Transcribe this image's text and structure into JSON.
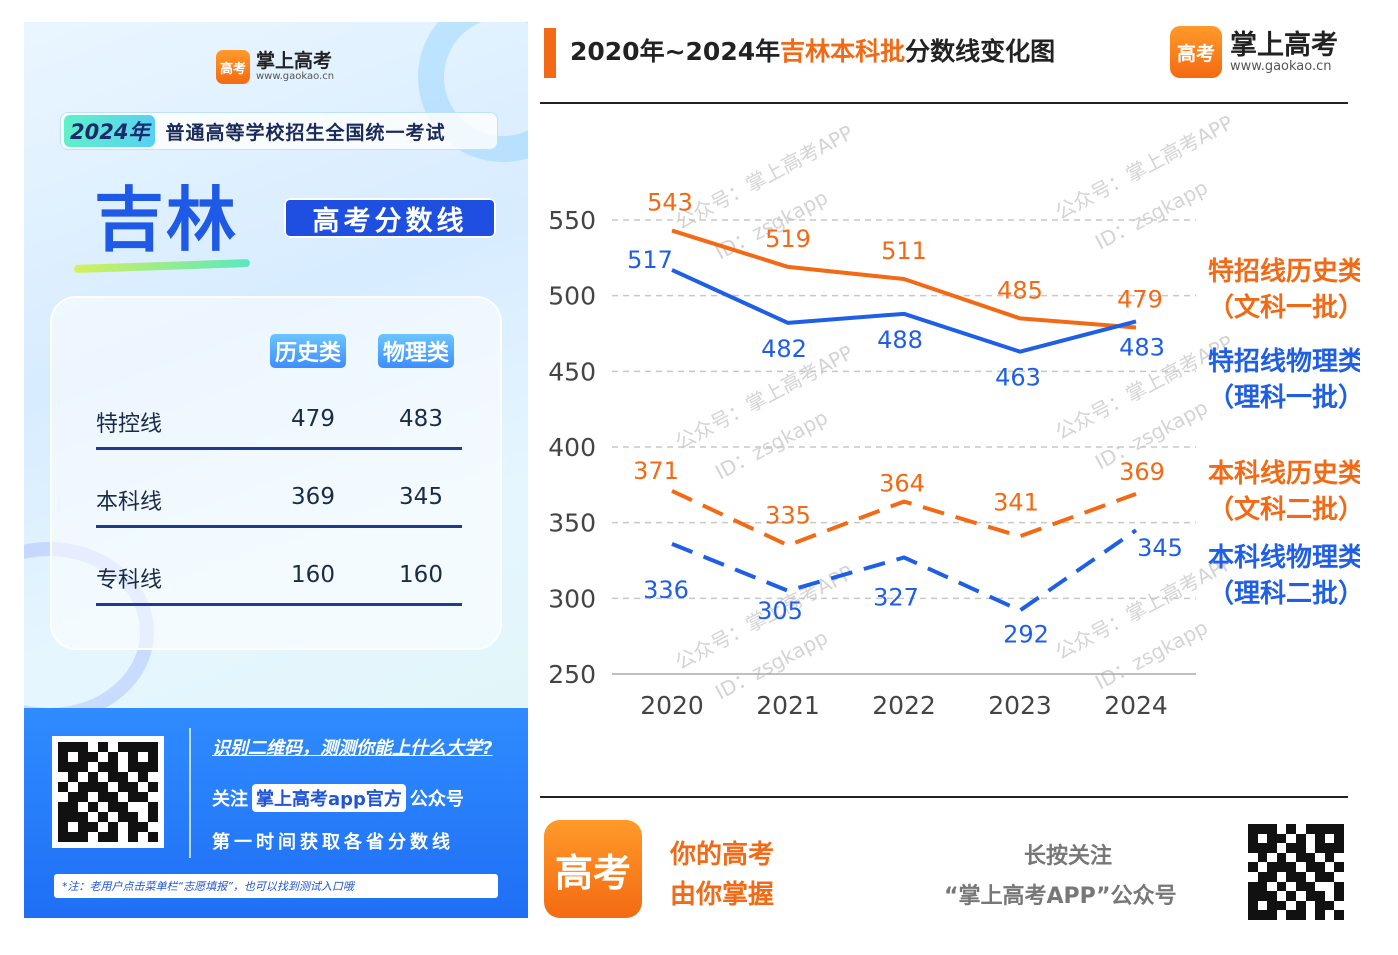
{
  "poster": {
    "brand_name": "掌上高考",
    "brand_url": "www.gaokao.cn",
    "logo_glyph": "高考",
    "exam_year": "2024年",
    "exam_title": "普通高等学校招生全国统一考试",
    "province": "吉林",
    "badge": "高考分数线",
    "columns": [
      "历史类",
      "物理类"
    ],
    "rows": [
      {
        "label": "特控线",
        "history": "479",
        "physics": "483"
      },
      {
        "label": "本科线",
        "history": "369",
        "physics": "345"
      },
      {
        "label": "专科线",
        "history": "160",
        "physics": "160"
      }
    ],
    "footer_line1": "识别二维码，测测你能上什么大学?",
    "footer_follow_prefix": "关注",
    "footer_follow_pill": "掌上高考app官方",
    "footer_follow_suffix": "公众号",
    "footer_line3": "第一时间获取各省分数线",
    "footer_note": "*注：老用户点击菜单栏“志愿填报”，也可以找到测试入口哦"
  },
  "header": {
    "title_prefix": "2020年~2024年",
    "title_highlight": "吉林本科批",
    "title_suffix": "分数线变化图",
    "brand_name": "掌上高考",
    "brand_url": "www.gaokao.cn",
    "logo_glyph": "高考"
  },
  "watermark": {
    "line1": "公众号：掌上高考APP",
    "line2": "ID：zsgkapp"
  },
  "chart_data": {
    "type": "line",
    "x": [
      "2020",
      "2021",
      "2022",
      "2023",
      "2024"
    ],
    "ylim": [
      250,
      550
    ],
    "yticks": [
      250,
      300,
      350,
      400,
      450,
      500,
      550
    ],
    "grid": true,
    "series": [
      {
        "name": "特招线历史类",
        "name_line2": "（文科一批）",
        "values": [
          543,
          519,
          511,
          485,
          479
        ],
        "color": "#f26a15",
        "dashed": false
      },
      {
        "name": "特招线物理类",
        "name_line2": "（理科一批）",
        "values": [
          517,
          482,
          488,
          463,
          483
        ],
        "color": "#1f5fe6",
        "dashed": false
      },
      {
        "name": "本科线历史类",
        "name_line2": "（文科二批）",
        "values": [
          371,
          335,
          364,
          341,
          369
        ],
        "color": "#f26a15",
        "dashed": true
      },
      {
        "name": "本科线物理类",
        "name_line2": "（理科二批）",
        "values": [
          336,
          305,
          327,
          292,
          345
        ],
        "color": "#1f5fe6",
        "dashed": true
      }
    ]
  },
  "footer": {
    "slogan1": "你的高考",
    "slogan2": "由你掌握",
    "follow1": "长按关注",
    "follow2": "“掌上高考APP”公众号",
    "logo_glyph": "高考"
  }
}
